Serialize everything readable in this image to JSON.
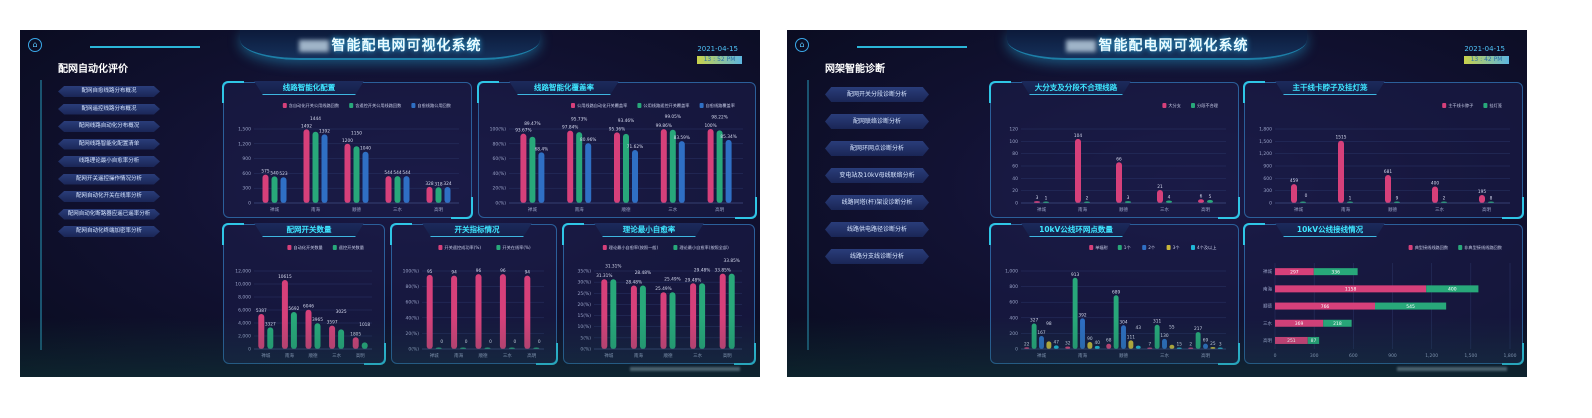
{
  "screens": [
    {
      "system_title": "智能配电网可视化系统",
      "section_title": "配网自动化评价",
      "date": "2021-04-15",
      "time": "13 : 52 PM",
      "menu": [
        "配网自愈线路分布概况",
        "配网遥控线路分布概况",
        "配网线路自动化分布概况",
        "配网线路智能化配置清单",
        "线路理论最小自愈率分析",
        "配网开关遥控操作情况分析",
        "配网自动化开关在线率分析",
        "配网自动化断路器应遥已遥率分析",
        "配网自动化终端加密率分析"
      ]
    },
    {
      "system_title": "智能配电网可视化系统",
      "section_title": "网架智能诊断",
      "date": "2021-04-15",
      "time": "13 : 42 PM",
      "menu": [
        "配网开关分段诊断分析",
        "配网联络诊断分析",
        "配网环网点诊断分析",
        "变电站及10kV母线联络分析",
        "线路同塔(杆)架设诊断分析",
        "线路供电路径诊断分析",
        "线路分支线诊断分析"
      ]
    }
  ],
  "colors": {
    "pink": "#d6407a",
    "green": "#28a87a",
    "blue": "#2f6fc4",
    "yellow": "#c8b63a",
    "cyan": "#1fb8d8",
    "title": "#3ee6ff"
  },
  "chart_data": [
    {
      "title": "线路智能化配置",
      "type": "bar",
      "categories": [
        "禅城",
        "南海",
        "顺德",
        "三水",
        "高明"
      ],
      "ylim": [
        0,
        1500
      ],
      "ystep": 300,
      "yformat": "comma",
      "series": [
        {
          "name": "含自动化开关公用线路回数",
          "color": "#d6407a",
          "values": [
            575,
            1492,
            1200,
            544,
            328
          ]
        },
        {
          "name": "含遥控开关公用线路回数",
          "color": "#28a87a",
          "values": [
            540,
            1444,
            1150,
            544,
            318
          ]
        },
        {
          "name": "自愈线路公用回数",
          "color": "#2f6fc4",
          "values": [
            523,
            1392,
            1040,
            544,
            324
          ]
        }
      ]
    },
    {
      "title": "线路智能化覆盖率",
      "type": "bar",
      "categories": [
        "禅城",
        "南海",
        "顺德",
        "三水",
        "高明"
      ],
      "ylim": [
        0,
        100
      ],
      "ystep": 20,
      "yformat": "pct",
      "label_suffix": "%",
      "series": [
        {
          "name": "公用线路自动化开关覆盖率",
          "color": "#d6407a",
          "values": [
            93.67,
            97.84,
            95.36,
            99.86,
            100
          ]
        },
        {
          "name": "公用线路遥控开关覆盖率",
          "color": "#28a87a",
          "values": [
            89.47,
            95.73,
            93.46,
            99.05,
            98.22
          ]
        },
        {
          "name": "自愈线路覆盖率",
          "color": "#2f6fc4",
          "values": [
            68.4,
            80.96,
            71.62,
            83.59,
            85.34
          ]
        }
      ]
    },
    {
      "title": "配网开关数量",
      "type": "bar",
      "categories": [
        "禅城",
        "南海",
        "顺德",
        "三水",
        "高明"
      ],
      "ylim": [
        0,
        12000
      ],
      "ystep": 2000,
      "yformat": "comma",
      "series": [
        {
          "name": "自动化开关数量",
          "color": "#d6407a",
          "values": [
            5387,
            10615,
            6046,
            3597,
            1805
          ]
        },
        {
          "name": "遥控开关数量",
          "color": "#28a87a",
          "values": [
            3327,
            5692,
            3965,
            3025,
            1018
          ]
        }
      ]
    },
    {
      "title": "开关指标情况",
      "type": "bar",
      "categories": [
        "禅城",
        "南海",
        "顺德",
        "三水",
        "高明"
      ],
      "ylim": [
        0,
        100
      ],
      "ystep": 20,
      "yformat": "pct",
      "series": [
        {
          "name": "开关遥控成功率(%)",
          "color": "#d6407a",
          "values": [
            95,
            94,
            96,
            96,
            94
          ]
        },
        {
          "name": "开关在线率(%)",
          "color": "#28a87a",
          "values": [
            0,
            0,
            0,
            0,
            0
          ]
        }
      ]
    },
    {
      "title": "理论最小自愈率",
      "type": "bar",
      "categories": [
        "禅城",
        "南海",
        "顺德",
        "三水",
        "高明"
      ],
      "ylim": [
        0,
        35
      ],
      "ystep": 5,
      "yformat": "pct",
      "label_suffix": "%",
      "series": [
        {
          "name": "理论最小自愈率(按照一般)",
          "color": "#d6407a",
          "values": [
            31.31,
            28.48,
            25.49,
            29.48,
            33.85
          ]
        },
        {
          "name": "理论最小自愈率(按照全部)",
          "color": "#28a87a",
          "values": [
            31.31,
            28.48,
            25.49,
            29.48,
            33.85
          ]
        }
      ]
    },
    {
      "title": "大分支及分段不合理线路",
      "type": "bar",
      "categories": [
        "禅城",
        "南海",
        "顺德",
        "三水",
        "高明"
      ],
      "ylim": [
        0,
        120
      ],
      "ystep": 20,
      "yformat": "comma",
      "series": [
        {
          "name": "大分支",
          "color": "#d6407a",
          "values": [
            3,
            104,
            66,
            21,
            6
          ]
        },
        {
          "name": "分段不合理",
          "color": "#28a87a",
          "values": [
            1,
            2,
            3,
            4,
            5
          ]
        }
      ]
    },
    {
      "title": "主干线卡脖子及挂灯笼",
      "type": "bar",
      "categories": [
        "禅城",
        "南海",
        "顺德",
        "三水",
        "高明"
      ],
      "ylim": [
        0,
        1800
      ],
      "ystep": 300,
      "yformat": "comma",
      "series": [
        {
          "name": "主干线卡脖子",
          "color": "#d6407a",
          "values": [
            459,
            1515,
            681,
            400,
            195
          ]
        },
        {
          "name": "挂灯笼",
          "color": "#28a87a",
          "values": [
            0,
            1,
            9,
            2,
            8
          ]
        }
      ]
    },
    {
      "title": "10kV公线环网点数量",
      "type": "bar",
      "categories": [
        "禅城",
        "南海",
        "顺德",
        "三水",
        "高明"
      ],
      "ylim": [
        0,
        1000
      ],
      "ystep": 200,
      "yformat": "comma",
      "series": [
        {
          "name": "单辐射",
          "color": "#d6407a",
          "values": [
            22,
            32,
            68,
            7,
            2
          ]
        },
        {
          "name": "1个",
          "color": "#28a87a",
          "values": [
            327,
            913,
            689,
            311,
            217
          ]
        },
        {
          "name": "2个",
          "color": "#2f6fc4",
          "values": [
            167,
            392,
            304,
            130,
            69
          ]
        },
        {
          "name": "3个",
          "color": "#c8b63a",
          "values": [
            98,
            90,
            111,
            55,
            25
          ]
        },
        {
          "name": "4个及以上",
          "color": "#1fb8d8",
          "values": [
            47,
            40,
            43,
            15,
            3
          ]
        }
      ]
    },
    {
      "title": "10kV公线接线情况",
      "type": "hstack",
      "categories": [
        "禅城",
        "南海",
        "顺德",
        "三水",
        "高明"
      ],
      "xlim": [
        0,
        1800
      ],
      "xstep": 300,
      "yformat": "comma",
      "series": [
        {
          "name": "典型接线线路回数",
          "color": "#d6407a",
          "values": [
            297,
            1158,
            766,
            369,
            251
          ]
        },
        {
          "name": "非典型接线线路回数",
          "color": "#28a87a",
          "values": [
            336,
            400,
            545,
            218,
            87
          ]
        }
      ]
    }
  ]
}
